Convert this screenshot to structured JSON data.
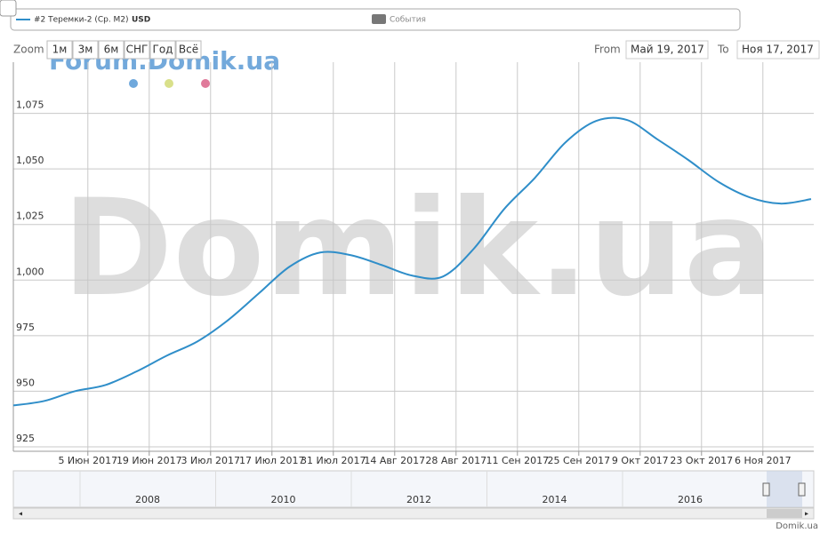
{
  "chart_data": {
    "type": "line",
    "legend": {
      "series_unit": "USD",
      "events": "События"
    },
    "range_selector": {
      "label": "Zoom",
      "buttons": [
        "1м",
        "3м",
        "6м",
        "СНГ",
        "Год",
        "Всё"
      ],
      "from_label": "From",
      "from": "Май 19, 2017",
      "to_label": "To",
      "to": "Ноя 17, 2017"
    },
    "watermark": "Domik.ua",
    "forum_watermark": "Forum.Domik.ua",
    "credit": "Domik.ua",
    "series": [
      {
        "name": "#2 Теремки-2 (Ср. М2)",
        "color": "#2f8ec9",
        "x": [
          "2017-05-19",
          "2017-05-26",
          "2017-06-02",
          "2017-06-09",
          "2017-06-16",
          "2017-06-23",
          "2017-06-30",
          "2017-07-07",
          "2017-07-14",
          "2017-07-21",
          "2017-07-28",
          "2017-08-04",
          "2017-08-11",
          "2017-08-18",
          "2017-08-25",
          "2017-09-01",
          "2017-09-08",
          "2017-09-15",
          "2017-09-22",
          "2017-09-29",
          "2017-10-06",
          "2017-10-13",
          "2017-10-20",
          "2017-10-27",
          "2017-11-03",
          "2017-11-10",
          "2017-11-17"
        ],
        "values": [
          943.6,
          945.6,
          950,
          952.8,
          958.8,
          966,
          972.4,
          982,
          994,
          1006,
          1012.4,
          1011.2,
          1006.8,
          1002,
          1001.6,
          1014,
          1032,
          1046,
          1062,
          1071.6,
          1072,
          1063.2,
          1054,
          1044,
          1037.2,
          1034.4,
          1036.4
        ]
      }
    ],
    "xlim": [
      "2017-05-19",
      "2017-11-17"
    ],
    "xticks": [
      {
        "value": "2017-06-05",
        "label": "5 Июн 2017"
      },
      {
        "value": "2017-06-19",
        "label": "19 Июн 2017"
      },
      {
        "value": "2017-07-03",
        "label": "3 Июл 2017"
      },
      {
        "value": "2017-07-17",
        "label": "17 Июл 2017"
      },
      {
        "value": "2017-07-31",
        "label": "31 Июл 2017"
      },
      {
        "value": "2017-08-14",
        "label": "14 Авг 2017"
      },
      {
        "value": "2017-08-28",
        "label": "28 Авг 2017"
      },
      {
        "value": "2017-09-11",
        "label": "11 Сен 2017"
      },
      {
        "value": "2017-09-25",
        "label": "25 Сен 2017"
      },
      {
        "value": "2017-10-09",
        "label": "9 Окт 2017"
      },
      {
        "value": "2017-10-23",
        "label": "23 Окт 2017"
      },
      {
        "value": "2017-11-06",
        "label": "6 Ноя 2017"
      }
    ],
    "ylim": [
      923,
      1098
    ],
    "yticks": [
      925,
      950,
      975,
      {
        "value": 1000,
        "label": "1,000"
      },
      {
        "value": 1025,
        "label": "1,025"
      },
      {
        "value": 1050,
        "label": "1,050"
      },
      {
        "value": 1075,
        "label": "1,075"
      }
    ],
    "grid": true,
    "navigator_labels": [
      "2008",
      "2010",
      "2012",
      "2014",
      "2016"
    ]
  }
}
